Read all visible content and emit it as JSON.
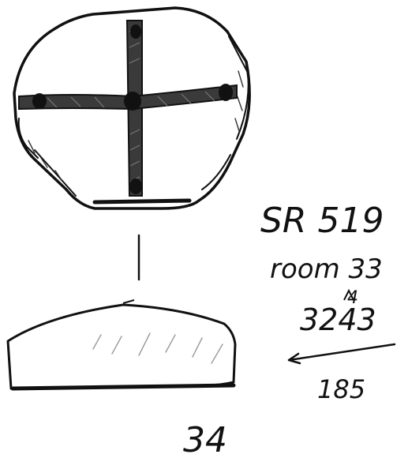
{
  "annotations": {
    "site_code": "SR 519",
    "room": "room 33",
    "number": "3243",
    "inserted_digit": "4",
    "sub_number": "185",
    "figure_number": "34"
  },
  "colors": {
    "ink": "#111111",
    "paper": "#ffffff",
    "hatch": "#555555"
  }
}
